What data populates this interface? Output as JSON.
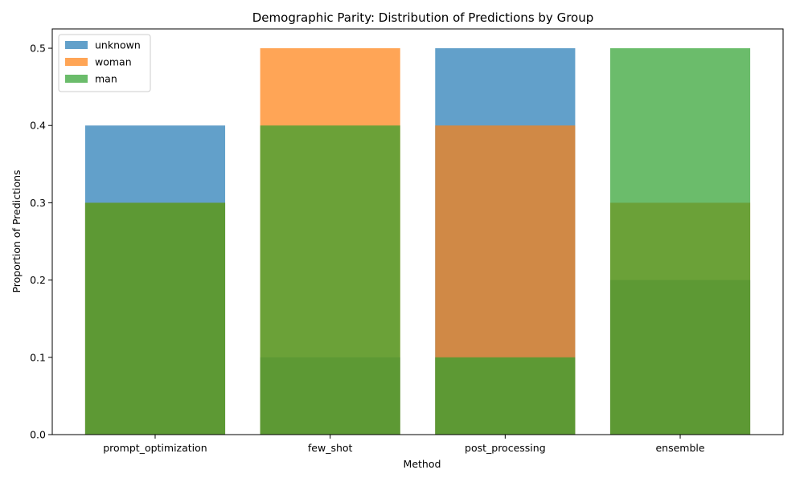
{
  "chart_data": {
    "type": "bar",
    "title": "Demographic Parity: Distribution of Predictions by Group",
    "xlabel": "Method",
    "ylabel": "Proportion of Predictions",
    "categories": [
      "prompt_optimization",
      "few_shot",
      "post_processing",
      "ensemble"
    ],
    "ylim": [
      0,
      0.525
    ],
    "yticks": [
      0.0,
      0.1,
      0.2,
      0.3,
      0.4,
      0.5
    ],
    "ytick_labels": [
      "0.0",
      "0.1",
      "0.2",
      "0.3",
      "0.4",
      "0.5"
    ],
    "bar_mode": "overlaid-semi-transparent",
    "grid": false,
    "legend_position": "top-left",
    "series": [
      {
        "name": "unknown",
        "color": "#1f77b4",
        "values": [
          0.4,
          0.1,
          0.5,
          0.2
        ]
      },
      {
        "name": "woman",
        "color": "#ff7f0e",
        "values": [
          0.3,
          0.5,
          0.4,
          0.3
        ]
      },
      {
        "name": "man",
        "color": "#2ca02c",
        "values": [
          0.3,
          0.4,
          0.1,
          0.5
        ]
      }
    ]
  }
}
